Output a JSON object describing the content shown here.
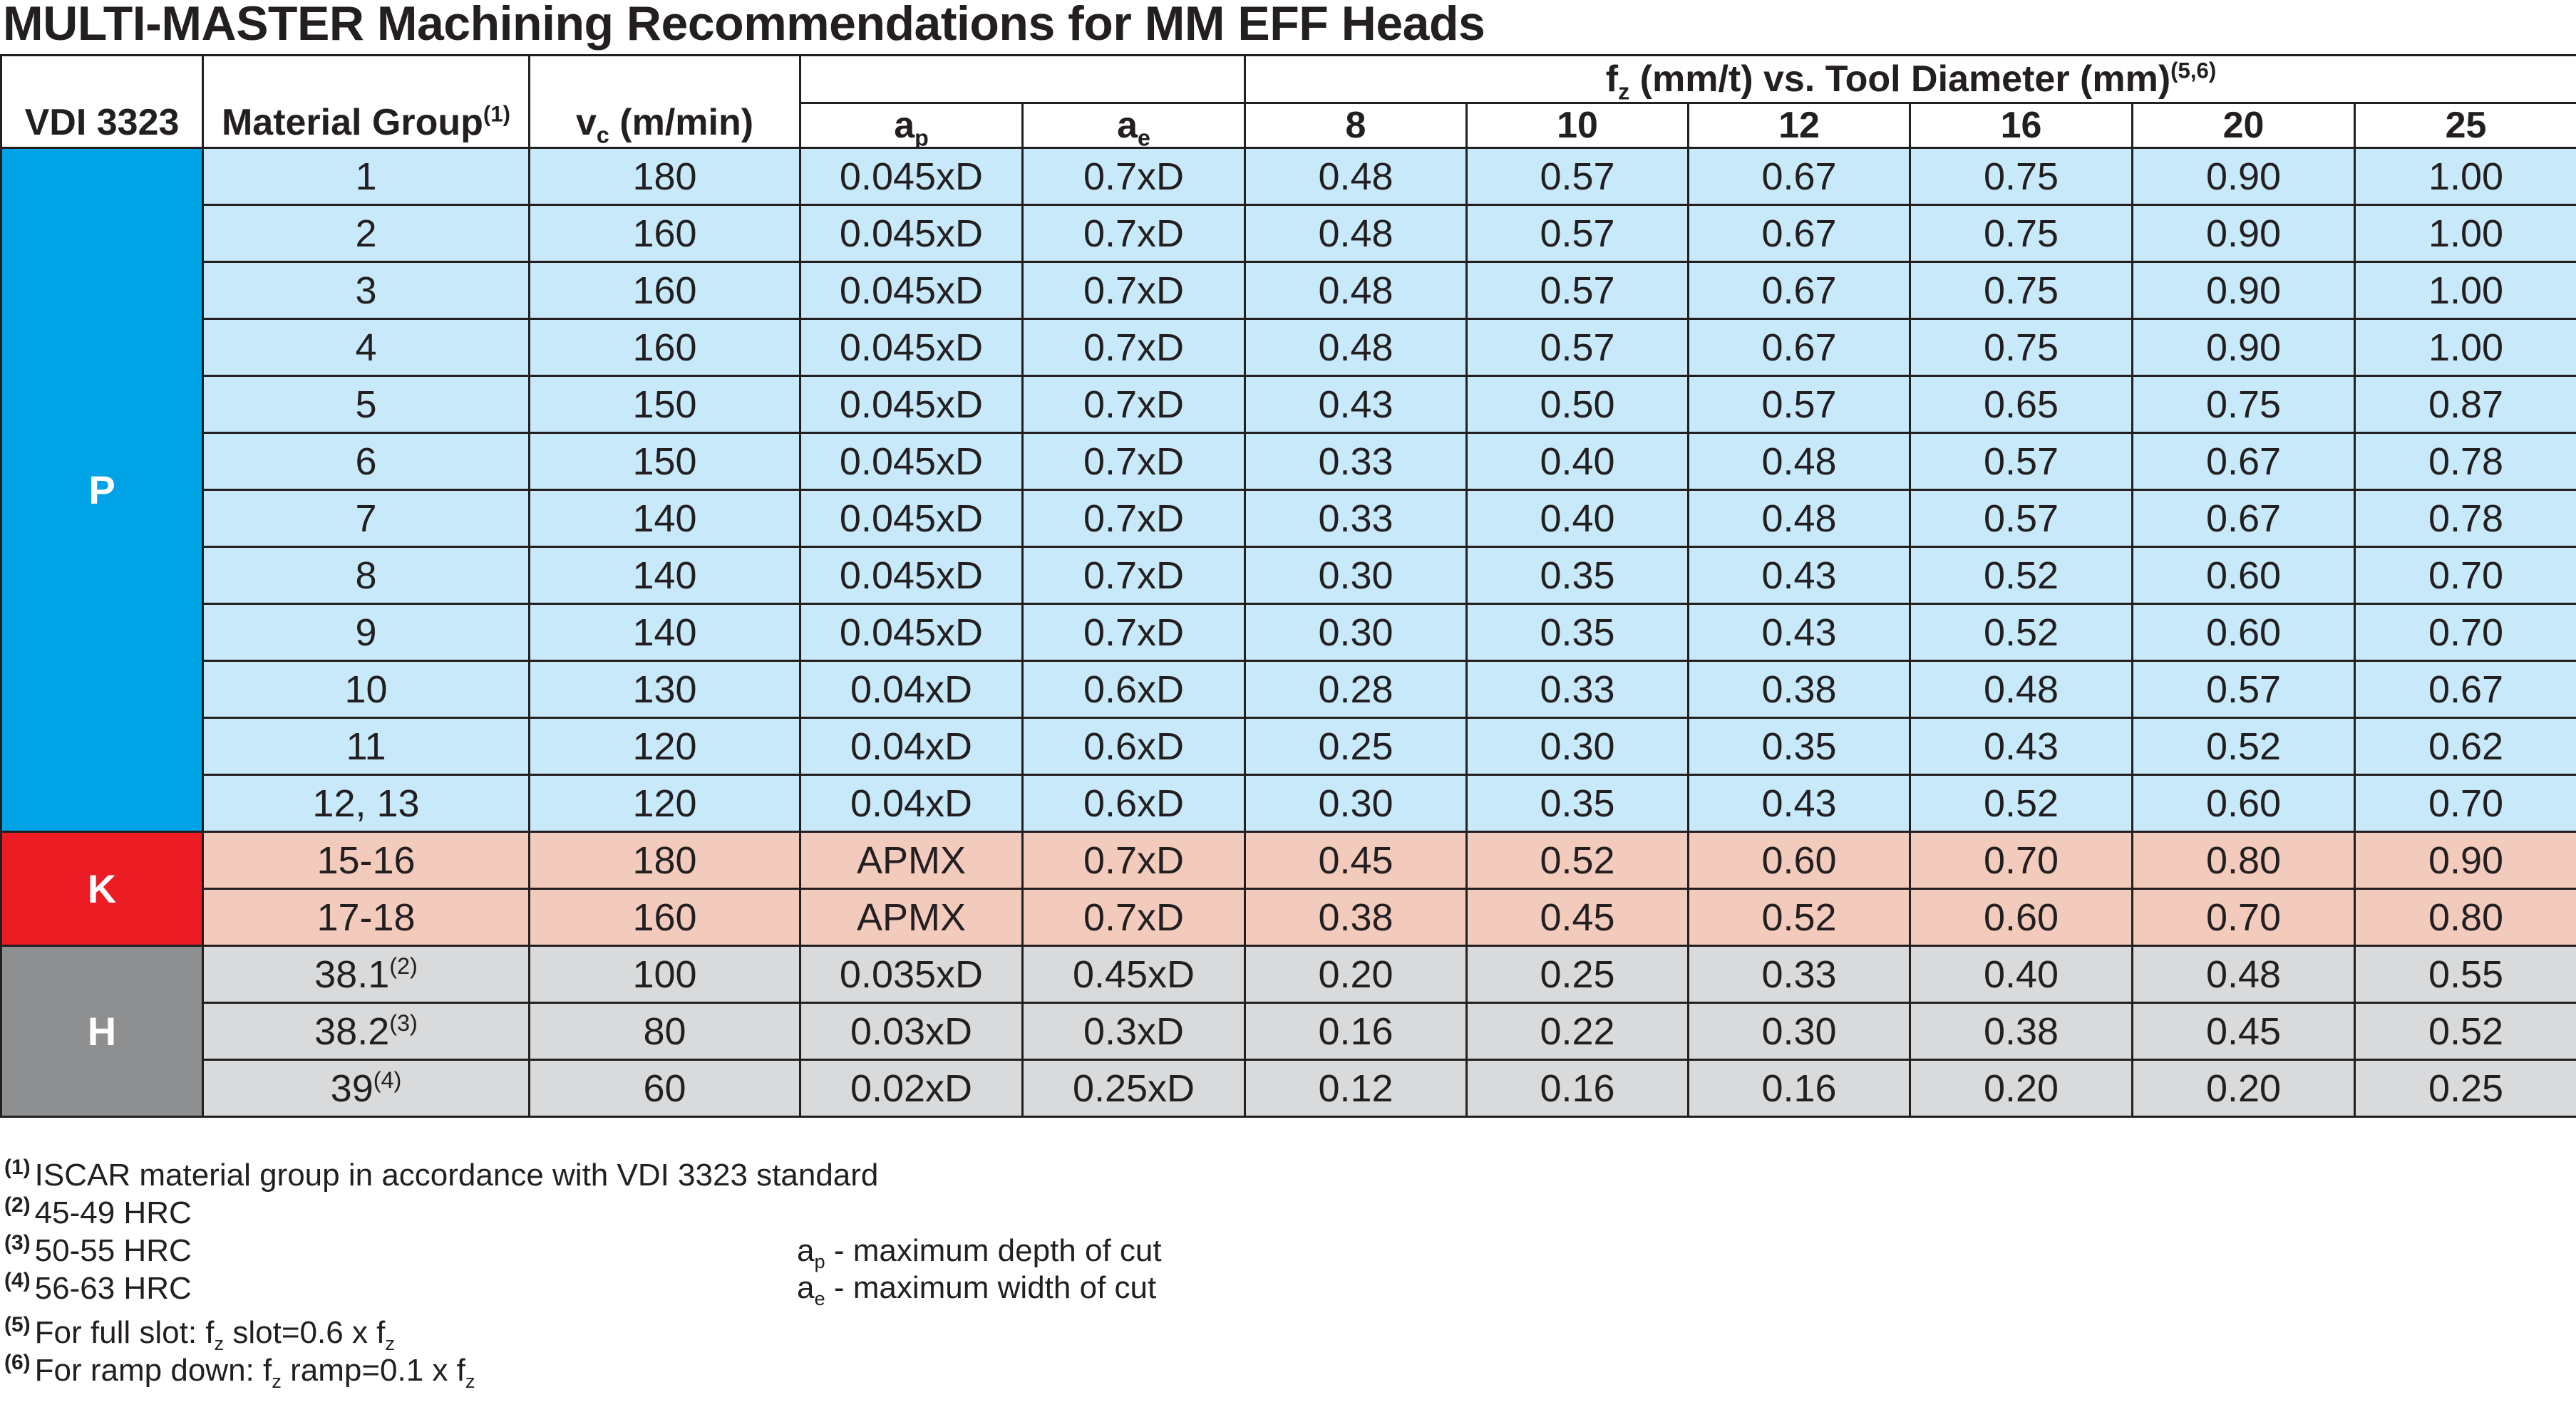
{
  "title": "MULTI-MASTER Machining Recommendations for MM EFF Heads",
  "header": {
    "vdi": "VDI 3323",
    "material_group": "Material Group",
    "material_group_sup": "(1)",
    "vc_sym": "v",
    "vc_sub": "c",
    "vc_unit": " (m/min)",
    "fz_sym": "f",
    "fz_sub": "z",
    "fz_rest": " (mm/t) vs. Tool Diameter (mm)",
    "fz_sup": "(5,6)",
    "ap_sym": "a",
    "ap_sub": "p",
    "ae_sym": "a",
    "ae_sub": "e",
    "diameters": [
      "8",
      "10",
      "12",
      "16",
      "20",
      "25"
    ]
  },
  "groups": [
    {
      "name": "P",
      "color": "#00a3e6",
      "row_color": "#c7e9fa"
    },
    {
      "name": "K",
      "color": "#ec1c24",
      "row_color": "#f2cbbd"
    },
    {
      "name": "H",
      "color": "#8e8f91",
      "row_color": "#d9dadb"
    }
  ],
  "rows": [
    {
      "group": "P",
      "material": "1",
      "material_sup": "",
      "vc": "180",
      "ap": "0.045xD",
      "ae": "0.7xD",
      "fz": [
        "0.48",
        "0.57",
        "0.67",
        "0.75",
        "0.90",
        "1.00"
      ]
    },
    {
      "group": "P",
      "material": "2",
      "material_sup": "",
      "vc": "160",
      "ap": "0.045xD",
      "ae": "0.7xD",
      "fz": [
        "0.48",
        "0.57",
        "0.67",
        "0.75",
        "0.90",
        "1.00"
      ]
    },
    {
      "group": "P",
      "material": "3",
      "material_sup": "",
      "vc": "160",
      "ap": "0.045xD",
      "ae": "0.7xD",
      "fz": [
        "0.48",
        "0.57",
        "0.67",
        "0.75",
        "0.90",
        "1.00"
      ]
    },
    {
      "group": "P",
      "material": "4",
      "material_sup": "",
      "vc": "160",
      "ap": "0.045xD",
      "ae": "0.7xD",
      "fz": [
        "0.48",
        "0.57",
        "0.67",
        "0.75",
        "0.90",
        "1.00"
      ]
    },
    {
      "group": "P",
      "material": "5",
      "material_sup": "",
      "vc": "150",
      "ap": "0.045xD",
      "ae": "0.7xD",
      "fz": [
        "0.43",
        "0.50",
        "0.57",
        "0.65",
        "0.75",
        "0.87"
      ]
    },
    {
      "group": "P",
      "material": "6",
      "material_sup": "",
      "vc": "150",
      "ap": "0.045xD",
      "ae": "0.7xD",
      "fz": [
        "0.33",
        "0.40",
        "0.48",
        "0.57",
        "0.67",
        "0.78"
      ]
    },
    {
      "group": "P",
      "material": "7",
      "material_sup": "",
      "vc": "140",
      "ap": "0.045xD",
      "ae": "0.7xD",
      "fz": [
        "0.33",
        "0.40",
        "0.48",
        "0.57",
        "0.67",
        "0.78"
      ]
    },
    {
      "group": "P",
      "material": "8",
      "material_sup": "",
      "vc": "140",
      "ap": "0.045xD",
      "ae": "0.7xD",
      "fz": [
        "0.30",
        "0.35",
        "0.43",
        "0.52",
        "0.60",
        "0.70"
      ]
    },
    {
      "group": "P",
      "material": "9",
      "material_sup": "",
      "vc": "140",
      "ap": "0.045xD",
      "ae": "0.7xD",
      "fz": [
        "0.30",
        "0.35",
        "0.43",
        "0.52",
        "0.60",
        "0.70"
      ]
    },
    {
      "group": "P",
      "material": "10",
      "material_sup": "",
      "vc": "130",
      "ap": "0.04xD",
      "ae": "0.6xD",
      "fz": [
        "0.28",
        "0.33",
        "0.38",
        "0.48",
        "0.57",
        "0.67"
      ]
    },
    {
      "group": "P",
      "material": "11",
      "material_sup": "",
      "vc": "120",
      "ap": "0.04xD",
      "ae": "0.6xD",
      "fz": [
        "0.25",
        "0.30",
        "0.35",
        "0.43",
        "0.52",
        "0.62"
      ]
    },
    {
      "group": "P",
      "material": "12, 13",
      "material_sup": "",
      "vc": "120",
      "ap": "0.04xD",
      "ae": "0.6xD",
      "fz": [
        "0.30",
        "0.35",
        "0.43",
        "0.52",
        "0.60",
        "0.70"
      ]
    },
    {
      "group": "K",
      "material": "15-16",
      "material_sup": "",
      "vc": "180",
      "ap": "APMX",
      "ae": "0.7xD",
      "fz": [
        "0.45",
        "0.52",
        "0.60",
        "0.70",
        "0.80",
        "0.90"
      ]
    },
    {
      "group": "K",
      "material": "17-18",
      "material_sup": "",
      "vc": "160",
      "ap": "APMX",
      "ae": "0.7xD",
      "fz": [
        "0.38",
        "0.45",
        "0.52",
        "0.60",
        "0.70",
        "0.80"
      ]
    },
    {
      "group": "H",
      "material": "38.1",
      "material_sup": "(2)",
      "vc": "100",
      "ap": "0.035xD",
      "ae": "0.45xD",
      "fz": [
        "0.20",
        "0.25",
        "0.33",
        "0.40",
        "0.48",
        "0.55"
      ]
    },
    {
      "group": "H",
      "material": "38.2",
      "material_sup": "(3)",
      "vc": "80",
      "ap": "0.03xD",
      "ae": "0.3xD",
      "fz": [
        "0.16",
        "0.22",
        "0.30",
        "0.38",
        "0.45",
        "0.52"
      ]
    },
    {
      "group": "H",
      "material": "39",
      "material_sup": "(4)",
      "vc": "60",
      "ap": "0.02xD",
      "ae": "0.25xD",
      "fz": [
        "0.12",
        "0.16",
        "0.16",
        "0.20",
        "0.20",
        "0.25"
      ]
    }
  ],
  "footnotes": {
    "n1": {
      "mark": "(1)",
      "text": "ISCAR material group in accordance with VDI 3323 standard"
    },
    "n2": {
      "mark": "(2)",
      "text": "45-49 HRC"
    },
    "n3": {
      "mark": "(3)",
      "text": "50-55 HRC"
    },
    "n4": {
      "mark": "(4)",
      "text": "56-63 HRC"
    },
    "n5": {
      "mark": "(5)",
      "pre": "For full slot: f",
      "sub1": "z",
      "mid": " slot=0.6 x f",
      "sub2": "z"
    },
    "n6": {
      "mark": "(6)",
      "pre": "For ramp down: f",
      "sub1": "z",
      "mid": " ramp=0.1 x f",
      "sub2": "z"
    }
  },
  "legend": {
    "ap": {
      "sym": "a",
      "sub": "p",
      "text": " - maximum depth of cut"
    },
    "ae": {
      "sym": "a",
      "sub": "e",
      "text": " - maximum width of cut"
    }
  }
}
